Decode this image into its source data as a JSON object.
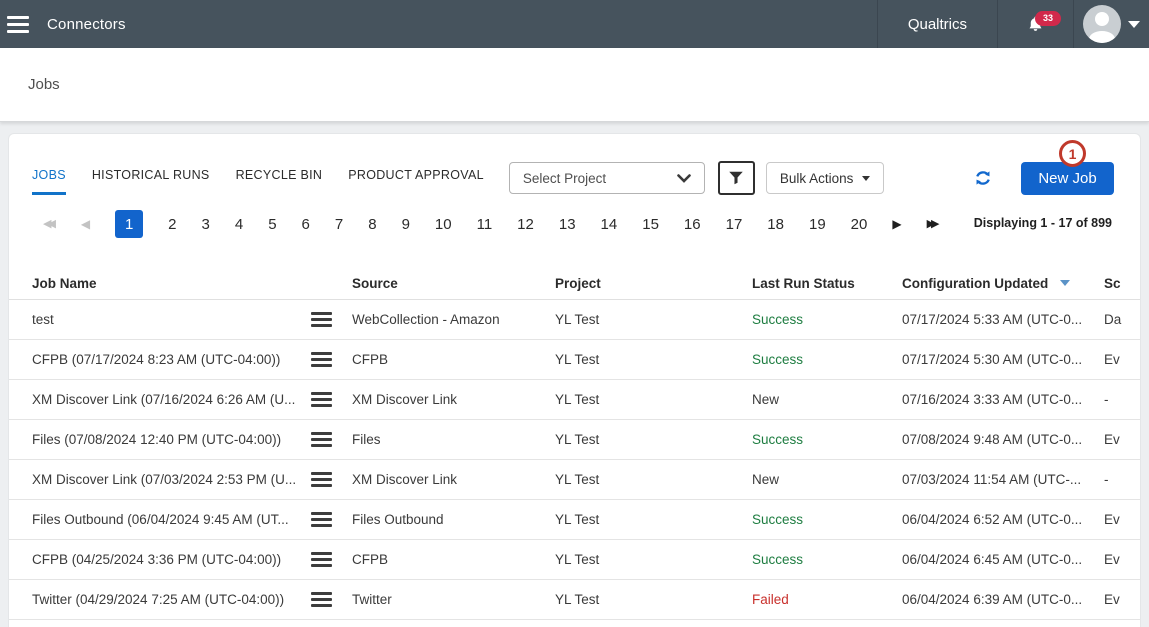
{
  "colors": {
    "topbar_bg": "#46535d",
    "accent_blue": "#1264cc",
    "tab_blue": "#1173c9",
    "badge_red": "#d2294b",
    "annotation_red": "#c0392b",
    "sort_arrow_blue": "#5b93c7",
    "status": {
      "success": "#1e7d41",
      "new": "#3a3a3a",
      "failed": "#c9302c"
    }
  },
  "icons": {
    "first_page": "◀◀",
    "prev_page": "◀",
    "next_page": "▶",
    "last_page": "▶▶"
  },
  "topbar": {
    "title": "Connectors",
    "brand": "Qualtrics",
    "badge": "33"
  },
  "page": {
    "title": "Jobs"
  },
  "tabs": [
    {
      "label": "JOBS",
      "active": true
    },
    {
      "label": "HISTORICAL RUNS",
      "active": false
    },
    {
      "label": "RECYCLE BIN",
      "active": false
    },
    {
      "label": "PRODUCT APPROVAL",
      "active": false
    }
  ],
  "toolbar": {
    "select_project": "Select Project",
    "bulk_actions": "Bulk Actions",
    "new_job_label": "New Job",
    "annotation": "1"
  },
  "pagination": {
    "pages": [
      "1",
      "2",
      "3",
      "4",
      "5",
      "6",
      "7",
      "8",
      "9",
      "10",
      "11",
      "12",
      "13",
      "14",
      "15",
      "16",
      "17",
      "18",
      "19",
      "20"
    ],
    "current": "1",
    "summary": "Displaying 1 - 17 of 899"
  },
  "table": {
    "headers": [
      "Job Name",
      "Source",
      "Project",
      "Last Run Status",
      "Configuration Updated",
      "Sc"
    ],
    "rows": [
      {
        "name": "test",
        "source": "WebCollection - Amazon",
        "project": "YL Test",
        "status": "Success",
        "status_type": "success",
        "updated": "07/17/2024 5:33 AM (UTC-0...",
        "schedule": "Da"
      },
      {
        "name": "CFPB (07/17/2024 8:23 AM (UTC-04:00))",
        "source": "CFPB",
        "project": "YL Test",
        "status": "Success",
        "status_type": "success",
        "updated": "07/17/2024 5:30 AM (UTC-0...",
        "schedule": "Ev"
      },
      {
        "name": "XM Discover Link (07/16/2024 6:26 AM (U...",
        "source": "XM Discover Link",
        "project": "YL Test",
        "status": "New",
        "status_type": "new",
        "updated": "07/16/2024 3:33 AM (UTC-0...",
        "schedule": "-"
      },
      {
        "name": "Files (07/08/2024 12:40 PM (UTC-04:00))",
        "source": "Files",
        "project": "YL Test",
        "status": "Success",
        "status_type": "success",
        "updated": "07/08/2024 9:48 AM (UTC-0...",
        "schedule": "Ev"
      },
      {
        "name": "XM Discover Link (07/03/2024 2:53 PM (U...",
        "source": "XM Discover Link",
        "project": "YL Test",
        "status": "New",
        "status_type": "new",
        "updated": "07/03/2024 11:54 AM (UTC-...",
        "schedule": "-"
      },
      {
        "name": "Files Outbound (06/04/2024 9:45 AM (UT...",
        "source": "Files Outbound",
        "project": "YL Test",
        "status": "Success",
        "status_type": "success",
        "updated": "06/04/2024 6:52 AM (UTC-0...",
        "schedule": "Ev"
      },
      {
        "name": "CFPB (04/25/2024 3:36 PM (UTC-04:00))",
        "source": "CFPB",
        "project": "YL Test",
        "status": "Success",
        "status_type": "success",
        "updated": "06/04/2024 6:45 AM (UTC-0...",
        "schedule": "Ev"
      },
      {
        "name": "Twitter (04/29/2024 7:25 AM (UTC-04:00))",
        "source": "Twitter",
        "project": "YL Test",
        "status": "Failed",
        "status_type": "failed",
        "updated": "06/04/2024 6:39 AM (UTC-0...",
        "schedule": "Ev"
      }
    ]
  }
}
